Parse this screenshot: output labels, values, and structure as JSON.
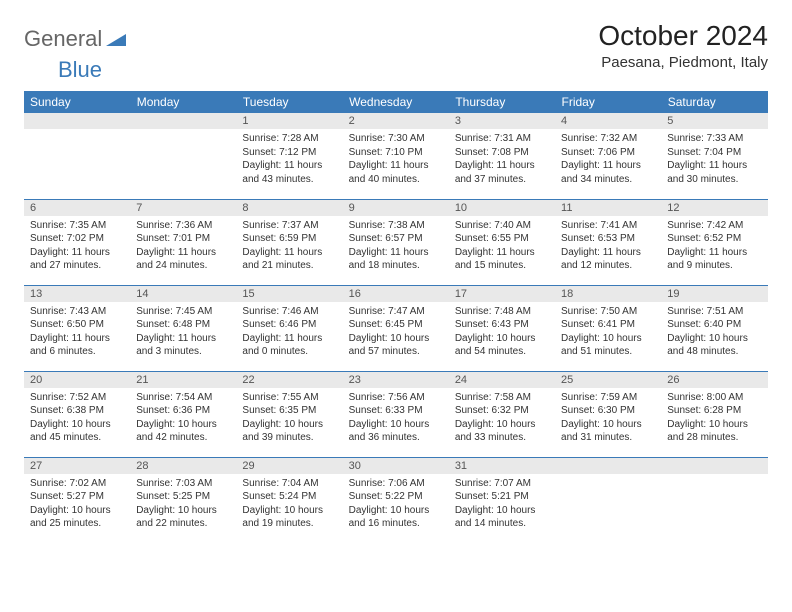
{
  "logo": {
    "text1": "General",
    "text2": "Blue"
  },
  "title": "October 2024",
  "location": "Paesana, Piedmont, Italy",
  "colors": {
    "header_bg": "#3a7ab8",
    "header_text": "#ffffff",
    "daynum_bg": "#e9e9e9",
    "border": "#3a7ab8"
  },
  "weekdays": [
    "Sunday",
    "Monday",
    "Tuesday",
    "Wednesday",
    "Thursday",
    "Friday",
    "Saturday"
  ],
  "weeks": [
    [
      null,
      null,
      {
        "n": "1",
        "sr": "Sunrise: 7:28 AM",
        "ss": "Sunset: 7:12 PM",
        "dl": "Daylight: 11 hours and 43 minutes."
      },
      {
        "n": "2",
        "sr": "Sunrise: 7:30 AM",
        "ss": "Sunset: 7:10 PM",
        "dl": "Daylight: 11 hours and 40 minutes."
      },
      {
        "n": "3",
        "sr": "Sunrise: 7:31 AM",
        "ss": "Sunset: 7:08 PM",
        "dl": "Daylight: 11 hours and 37 minutes."
      },
      {
        "n": "4",
        "sr": "Sunrise: 7:32 AM",
        "ss": "Sunset: 7:06 PM",
        "dl": "Daylight: 11 hours and 34 minutes."
      },
      {
        "n": "5",
        "sr": "Sunrise: 7:33 AM",
        "ss": "Sunset: 7:04 PM",
        "dl": "Daylight: 11 hours and 30 minutes."
      }
    ],
    [
      {
        "n": "6",
        "sr": "Sunrise: 7:35 AM",
        "ss": "Sunset: 7:02 PM",
        "dl": "Daylight: 11 hours and 27 minutes."
      },
      {
        "n": "7",
        "sr": "Sunrise: 7:36 AM",
        "ss": "Sunset: 7:01 PM",
        "dl": "Daylight: 11 hours and 24 minutes."
      },
      {
        "n": "8",
        "sr": "Sunrise: 7:37 AM",
        "ss": "Sunset: 6:59 PM",
        "dl": "Daylight: 11 hours and 21 minutes."
      },
      {
        "n": "9",
        "sr": "Sunrise: 7:38 AM",
        "ss": "Sunset: 6:57 PM",
        "dl": "Daylight: 11 hours and 18 minutes."
      },
      {
        "n": "10",
        "sr": "Sunrise: 7:40 AM",
        "ss": "Sunset: 6:55 PM",
        "dl": "Daylight: 11 hours and 15 minutes."
      },
      {
        "n": "11",
        "sr": "Sunrise: 7:41 AM",
        "ss": "Sunset: 6:53 PM",
        "dl": "Daylight: 11 hours and 12 minutes."
      },
      {
        "n": "12",
        "sr": "Sunrise: 7:42 AM",
        "ss": "Sunset: 6:52 PM",
        "dl": "Daylight: 11 hours and 9 minutes."
      }
    ],
    [
      {
        "n": "13",
        "sr": "Sunrise: 7:43 AM",
        "ss": "Sunset: 6:50 PM",
        "dl": "Daylight: 11 hours and 6 minutes."
      },
      {
        "n": "14",
        "sr": "Sunrise: 7:45 AM",
        "ss": "Sunset: 6:48 PM",
        "dl": "Daylight: 11 hours and 3 minutes."
      },
      {
        "n": "15",
        "sr": "Sunrise: 7:46 AM",
        "ss": "Sunset: 6:46 PM",
        "dl": "Daylight: 11 hours and 0 minutes."
      },
      {
        "n": "16",
        "sr": "Sunrise: 7:47 AM",
        "ss": "Sunset: 6:45 PM",
        "dl": "Daylight: 10 hours and 57 minutes."
      },
      {
        "n": "17",
        "sr": "Sunrise: 7:48 AM",
        "ss": "Sunset: 6:43 PM",
        "dl": "Daylight: 10 hours and 54 minutes."
      },
      {
        "n": "18",
        "sr": "Sunrise: 7:50 AM",
        "ss": "Sunset: 6:41 PM",
        "dl": "Daylight: 10 hours and 51 minutes."
      },
      {
        "n": "19",
        "sr": "Sunrise: 7:51 AM",
        "ss": "Sunset: 6:40 PM",
        "dl": "Daylight: 10 hours and 48 minutes."
      }
    ],
    [
      {
        "n": "20",
        "sr": "Sunrise: 7:52 AM",
        "ss": "Sunset: 6:38 PM",
        "dl": "Daylight: 10 hours and 45 minutes."
      },
      {
        "n": "21",
        "sr": "Sunrise: 7:54 AM",
        "ss": "Sunset: 6:36 PM",
        "dl": "Daylight: 10 hours and 42 minutes."
      },
      {
        "n": "22",
        "sr": "Sunrise: 7:55 AM",
        "ss": "Sunset: 6:35 PM",
        "dl": "Daylight: 10 hours and 39 minutes."
      },
      {
        "n": "23",
        "sr": "Sunrise: 7:56 AM",
        "ss": "Sunset: 6:33 PM",
        "dl": "Daylight: 10 hours and 36 minutes."
      },
      {
        "n": "24",
        "sr": "Sunrise: 7:58 AM",
        "ss": "Sunset: 6:32 PM",
        "dl": "Daylight: 10 hours and 33 minutes."
      },
      {
        "n": "25",
        "sr": "Sunrise: 7:59 AM",
        "ss": "Sunset: 6:30 PM",
        "dl": "Daylight: 10 hours and 31 minutes."
      },
      {
        "n": "26",
        "sr": "Sunrise: 8:00 AM",
        "ss": "Sunset: 6:28 PM",
        "dl": "Daylight: 10 hours and 28 minutes."
      }
    ],
    [
      {
        "n": "27",
        "sr": "Sunrise: 7:02 AM",
        "ss": "Sunset: 5:27 PM",
        "dl": "Daylight: 10 hours and 25 minutes."
      },
      {
        "n": "28",
        "sr": "Sunrise: 7:03 AM",
        "ss": "Sunset: 5:25 PM",
        "dl": "Daylight: 10 hours and 22 minutes."
      },
      {
        "n": "29",
        "sr": "Sunrise: 7:04 AM",
        "ss": "Sunset: 5:24 PM",
        "dl": "Daylight: 10 hours and 19 minutes."
      },
      {
        "n": "30",
        "sr": "Sunrise: 7:06 AM",
        "ss": "Sunset: 5:22 PM",
        "dl": "Daylight: 10 hours and 16 minutes."
      },
      {
        "n": "31",
        "sr": "Sunrise: 7:07 AM",
        "ss": "Sunset: 5:21 PM",
        "dl": "Daylight: 10 hours and 14 minutes."
      },
      null,
      null
    ]
  ]
}
